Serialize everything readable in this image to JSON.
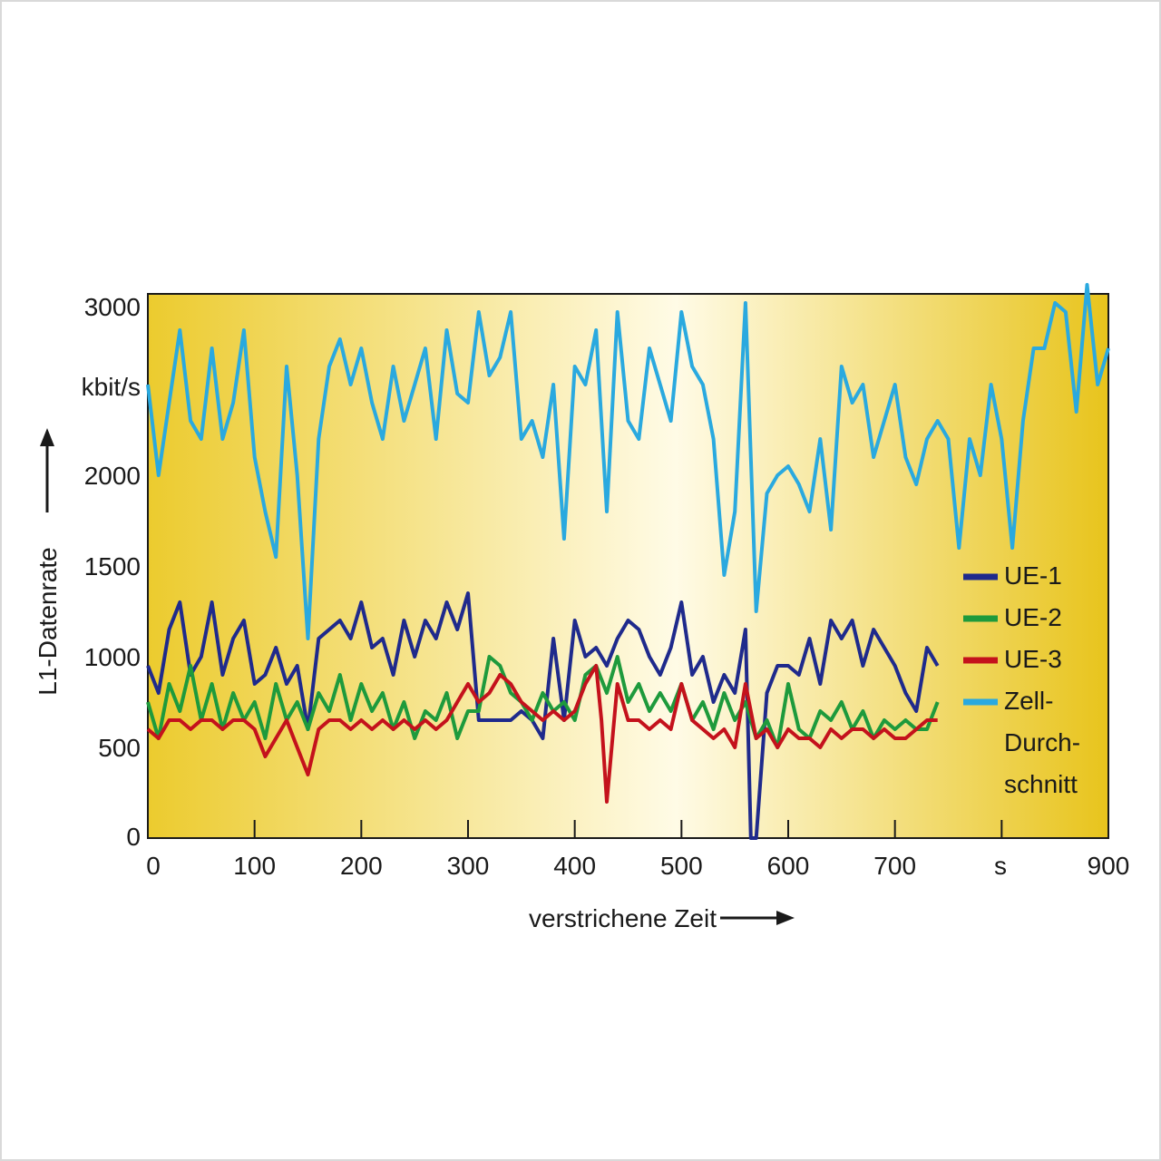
{
  "chart_data": {
    "type": "line",
    "title": "",
    "xlabel": "verstrichene Zeit",
    "ylabel": "L1-Datenrate",
    "xunit": "s",
    "yunit": "kbit/s",
    "xlim": [
      0,
      900
    ],
    "ylim": [
      0,
      3000
    ],
    "xticks": [
      0,
      100,
      200,
      300,
      400,
      500,
      600,
      700,
      900
    ],
    "yticks": [
      0,
      500,
      1000,
      1500,
      2000,
      3000
    ],
    "grid": false,
    "legend_position": "right",
    "colors": {
      "UE-1": "#1f2a8c",
      "UE-2": "#1e9a3c",
      "UE-3": "#c4121c",
      "Zell-Durchschnitt": "#2aa9df"
    },
    "legend": [
      {
        "lines": [
          "UE-1"
        ]
      },
      {
        "lines": [
          "UE-2"
        ]
      },
      {
        "lines": [
          "UE-3"
        ]
      },
      {
        "lines": [
          "Zell-",
          "Durch-",
          "schnitt"
        ]
      }
    ],
    "series": [
      {
        "name": "Zell-Durchschnitt",
        "x": [
          0,
          10,
          20,
          30,
          40,
          50,
          60,
          70,
          80,
          90,
          100,
          110,
          120,
          130,
          140,
          150,
          160,
          170,
          180,
          190,
          200,
          210,
          220,
          230,
          240,
          250,
          260,
          270,
          280,
          290,
          300,
          310,
          320,
          330,
          340,
          350,
          360,
          370,
          380,
          390,
          400,
          410,
          420,
          430,
          440,
          450,
          460,
          470,
          480,
          490,
          500,
          510,
          520,
          530,
          540,
          550,
          560,
          570,
          580,
          590,
          600,
          610,
          620,
          630,
          640,
          650,
          660,
          670,
          680,
          690,
          700,
          710,
          720,
          730,
          740,
          750,
          760,
          770,
          780,
          790,
          800,
          810,
          820,
          830,
          840,
          850,
          860,
          870,
          880,
          890,
          900
        ],
        "values": [
          2500,
          2000,
          2400,
          2800,
          2300,
          2200,
          2700,
          2200,
          2400,
          2800,
          2100,
          1800,
          1550,
          2600,
          2000,
          1100,
          2200,
          2600,
          2750,
          2500,
          2700,
          2400,
          2200,
          2600,
          2300,
          2500,
          2700,
          2200,
          2800,
          2450,
          2400,
          2900,
          2550,
          2650,
          2900,
          2200,
          2300,
          2100,
          2500,
          1650,
          2600,
          2500,
          2800,
          1800,
          2900,
          2300,
          2200,
          2700,
          2500,
          2300,
          2900,
          2600,
          2500,
          2200,
          1450,
          1800,
          2950,
          1250,
          1900,
          2000,
          2050,
          1950,
          1800,
          2200,
          1700,
          2600,
          2400,
          2500,
          2100,
          2300,
          2500,
          2100,
          1950,
          2200,
          2300,
          2200,
          1600,
          2200,
          2000,
          2500,
          2200,
          1600,
          2300,
          2700,
          2700,
          2950,
          2900,
          2350,
          3050,
          2500,
          2700
        ]
      },
      {
        "name": "UE-1",
        "x": [
          0,
          10,
          20,
          30,
          40,
          50,
          60,
          70,
          80,
          90,
          100,
          110,
          120,
          130,
          140,
          150,
          160,
          170,
          180,
          190,
          200,
          210,
          220,
          230,
          240,
          250,
          260,
          270,
          280,
          290,
          300,
          310,
          320,
          330,
          340,
          350,
          360,
          370,
          380,
          390,
          400,
          410,
          420,
          430,
          440,
          450,
          460,
          470,
          480,
          490,
          500,
          510,
          520,
          530,
          540,
          550,
          560,
          565,
          570,
          580,
          590,
          600,
          610,
          620,
          630,
          640,
          650,
          660,
          670,
          680,
          690,
          700,
          710,
          720,
          730,
          740
        ],
        "values": [
          950,
          800,
          1150,
          1300,
          900,
          1000,
          1300,
          900,
          1100,
          1200,
          850,
          900,
          1050,
          850,
          950,
          600,
          1100,
          1150,
          1200,
          1100,
          1300,
          1050,
          1100,
          900,
          1200,
          1000,
          1200,
          1100,
          1300,
          1150,
          1350,
          650,
          650,
          650,
          650,
          700,
          650,
          550,
          1100,
          650,
          1200,
          1000,
          1050,
          950,
          1100,
          1200,
          1150,
          1000,
          900,
          1050,
          1300,
          900,
          1000,
          750,
          900,
          800,
          1150,
          0,
          0,
          800,
          950,
          950,
          900,
          1100,
          850,
          1200,
          1100,
          1200,
          950,
          1150,
          1050,
          950,
          800,
          700,
          1050,
          950
        ]
      },
      {
        "name": "UE-2",
        "x": [
          0,
          10,
          20,
          30,
          40,
          50,
          60,
          70,
          80,
          90,
          100,
          110,
          120,
          130,
          140,
          150,
          160,
          170,
          180,
          190,
          200,
          210,
          220,
          230,
          240,
          250,
          260,
          270,
          280,
          290,
          300,
          310,
          320,
          330,
          340,
          350,
          360,
          370,
          380,
          390,
          400,
          410,
          420,
          430,
          440,
          450,
          460,
          470,
          480,
          490,
          500,
          510,
          520,
          530,
          540,
          550,
          560,
          570,
          580,
          590,
          600,
          610,
          620,
          630,
          640,
          650,
          660,
          670,
          680,
          690,
          700,
          710,
          720,
          730,
          740
        ],
        "values": [
          750,
          550,
          850,
          700,
          950,
          650,
          850,
          600,
          800,
          650,
          750,
          550,
          850,
          650,
          750,
          600,
          800,
          700,
          900,
          650,
          850,
          700,
          800,
          600,
          750,
          550,
          700,
          650,
          800,
          550,
          700,
          700,
          1000,
          950,
          800,
          750,
          650,
          800,
          700,
          750,
          650,
          900,
          950,
          800,
          1000,
          750,
          850,
          700,
          800,
          700,
          850,
          650,
          750,
          600,
          800,
          650,
          750,
          550,
          650,
          500,
          850,
          600,
          550,
          700,
          650,
          750,
          600,
          700,
          550,
          650,
          600,
          650,
          600,
          600,
          750
        ]
      },
      {
        "name": "UE-3",
        "x": [
          0,
          10,
          20,
          30,
          40,
          50,
          60,
          70,
          80,
          90,
          100,
          110,
          120,
          130,
          140,
          150,
          160,
          170,
          180,
          190,
          200,
          210,
          220,
          230,
          240,
          250,
          260,
          270,
          280,
          290,
          300,
          310,
          320,
          330,
          340,
          350,
          360,
          370,
          380,
          390,
          400,
          410,
          420,
          425,
          430,
          440,
          450,
          460,
          470,
          480,
          490,
          500,
          510,
          520,
          530,
          540,
          550,
          560,
          570,
          580,
          590,
          600,
          610,
          620,
          630,
          640,
          650,
          660,
          670,
          680,
          690,
          700,
          710,
          720,
          730,
          740
        ],
        "values": [
          600,
          550,
          650,
          650,
          600,
          650,
          650,
          600,
          650,
          650,
          600,
          450,
          550,
          650,
          500,
          350,
          600,
          650,
          650,
          600,
          650,
          600,
          650,
          600,
          650,
          600,
          650,
          600,
          650,
          750,
          850,
          750,
          800,
          900,
          850,
          750,
          700,
          650,
          700,
          650,
          700,
          850,
          950,
          650,
          200,
          850,
          650,
          650,
          600,
          650,
          600,
          850,
          650,
          600,
          550,
          600,
          500,
          850,
          550,
          600,
          500,
          600,
          550,
          550,
          500,
          600,
          550,
          600,
          600,
          550,
          600,
          550,
          550,
          600,
          650,
          650
        ]
      }
    ]
  }
}
